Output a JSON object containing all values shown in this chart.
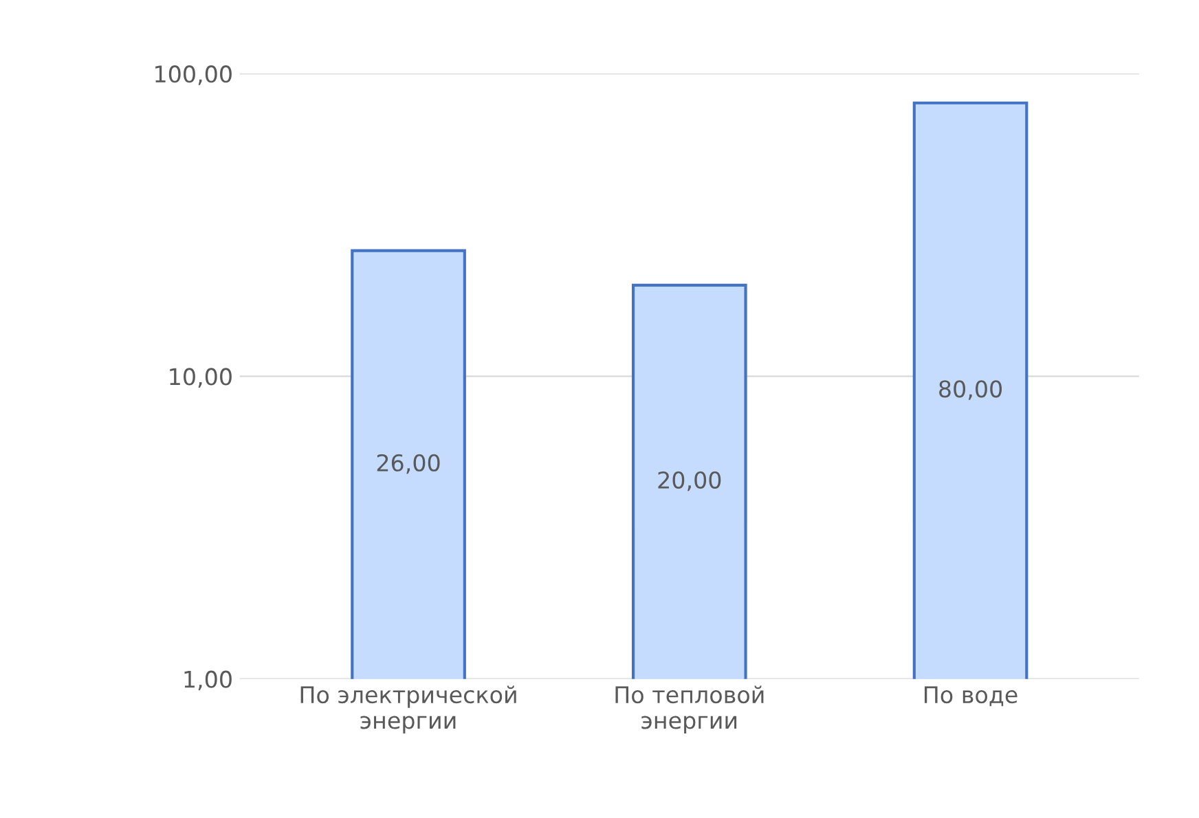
{
  "chart_data": {
    "type": "bar",
    "categories": [
      "По электрической\nэнергии",
      "По тепловой\nэнергии",
      "По воде"
    ],
    "values": [
      26,
      20,
      80
    ],
    "value_labels": [
      "26,00",
      "20,00",
      "80,00"
    ],
    "color": "#c6dcff",
    "log": true,
    "ylim": [
      1,
      100
    ],
    "yticks": [
      {
        "value": 1,
        "label": "1,00"
      },
      {
        "value": 10,
        "label": "10,00"
      },
      {
        "value": 100,
        "label": "100,00"
      }
    ],
    "grid": "y"
  }
}
